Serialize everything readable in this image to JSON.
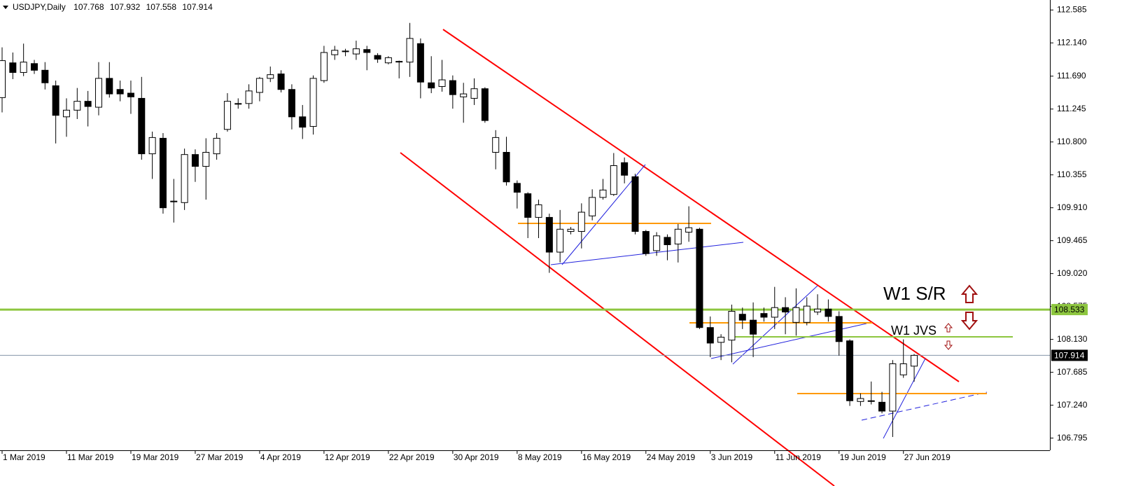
{
  "chart_data": {
    "type": "candlestick",
    "title": "USDJPY,Daily",
    "categories": [
      "1 Mar 2019",
      null,
      null,
      null,
      null,
      null,
      "11 Mar 2019",
      null,
      null,
      null,
      null,
      null,
      "19 Mar 2019",
      null,
      null,
      null,
      null,
      null,
      "27 Mar 2019",
      null,
      null,
      null,
      null,
      null,
      "4 Apr 2019",
      null,
      null,
      null,
      null,
      null,
      "12 Apr 2019",
      null,
      null,
      null,
      null,
      null,
      "22 Apr 2019",
      null,
      null,
      null,
      null,
      null,
      "30 Apr 2019",
      null,
      null,
      null,
      null,
      null,
      "8 May 2019",
      null,
      null,
      null,
      null,
      null,
      "16 May 2019",
      null,
      null,
      null,
      null,
      null,
      "24 May 2019",
      null,
      null,
      null,
      null,
      null,
      "3 Jun 2019",
      null,
      null,
      null,
      null,
      null,
      "11 Jun 2019",
      null,
      null,
      null,
      null,
      null,
      "19 Jun 2019",
      null,
      null,
      null,
      null,
      null,
      "27 Jun 2019",
      null
    ],
    "open": [
      111.4,
      111.87,
      111.74,
      111.86,
      111.77,
      111.56,
      111.14,
      111.23,
      111.35,
      111.27,
      111.66,
      111.51,
      111.46,
      111.39,
      110.64,
      110.85,
      109.99,
      109.98,
      110.63,
      110.47,
      110.64,
      110.97,
      111.32,
      111.32,
      111.47,
      111.66,
      111.72,
      111.51,
      111.14,
      111.01,
      111.63,
      111.98,
      112.03,
      111.99,
      112.05,
      111.97,
      111.87,
      111.89,
      111.88,
      112.13,
      111.6,
      111.55,
      111.63,
      111.41,
      111.39,
      111.52,
      110.66,
      110.66,
      110.24,
      110.1,
      109.78,
      109.78,
      109.31,
      109.59,
      109.59,
      109.8,
      110.05,
      110.09,
      110.52,
      110.33,
      109.59,
      109.33,
      109.51,
      109.42,
      109.58,
      109.62,
      108.29,
      108.09,
      108.12,
      108.47,
      108.39,
      108.48,
      108.43,
      108.56,
      108.36,
      108.36,
      108.5,
      108.54,
      108.44,
      108.11,
      107.29,
      107.3,
      107.28,
      107.16,
      107.65,
      107.768
    ],
    "high": [
      112.08,
      112.01,
      112.13,
      111.91,
      111.88,
      111.63,
      111.39,
      111.53,
      111.49,
      111.88,
      111.88,
      111.63,
      111.63,
      111.68,
      110.94,
      110.92,
      110.3,
      110.71,
      110.7,
      110.85,
      110.92,
      111.46,
      111.39,
      111.58,
      111.68,
      111.82,
      111.77,
      111.58,
      111.3,
      111.7,
      112.1,
      112.1,
      112.06,
      112.17,
      112.1,
      112.0,
      111.96,
      111.9,
      112.41,
      112.2,
      111.96,
      111.91,
      111.7,
      111.6,
      111.66,
      111.54,
      110.96,
      110.87,
      110.28,
      110.12,
      110.02,
      109.83,
      109.88,
      109.65,
      109.97,
      110.16,
      110.3,
      110.65,
      110.59,
      110.37,
      109.61,
      109.58,
      109.55,
      109.69,
      109.93,
      109.64,
      108.44,
      108.2,
      108.6,
      108.56,
      108.63,
      108.56,
      108.84,
      108.7,
      108.82,
      108.7,
      108.74,
      108.67,
      108.51,
      108.13,
      107.4,
      107.56,
      107.42,
      107.85,
      108.13,
      107.932
    ],
    "low": [
      111.2,
      111.65,
      111.69,
      111.72,
      111.51,
      110.78,
      110.87,
      111.11,
      111.01,
      111.16,
      111.4,
      111.35,
      111.18,
      110.56,
      110.3,
      109.83,
      109.71,
      109.88,
      110.26,
      110.02,
      110.56,
      110.94,
      111.25,
      111.25,
      111.35,
      111.61,
      111.47,
      110.97,
      110.84,
      110.9,
      111.6,
      111.91,
      111.96,
      111.91,
      111.77,
      111.87,
      111.85,
      111.66,
      111.68,
      111.39,
      111.46,
      111.48,
      111.25,
      111.06,
      111.3,
      111.06,
      110.43,
      110.21,
      109.9,
      109.5,
      109.5,
      109.03,
      109.17,
      109.55,
      109.36,
      109.74,
      110.02,
      110.07,
      110.24,
      109.55,
      109.26,
      109.26,
      109.2,
      109.17,
      109.45,
      108.27,
      107.89,
      107.85,
      107.82,
      108.27,
      107.89,
      108.37,
      108.27,
      108.2,
      108.18,
      108.32,
      108.46,
      108.37,
      107.91,
      107.23,
      107.23,
      107.25,
      107.13,
      106.81,
      107.61,
      107.558
    ],
    "close": [
      111.9,
      111.74,
      111.88,
      111.77,
      111.6,
      111.16,
      111.23,
      111.35,
      111.28,
      111.66,
      111.45,
      111.45,
      111.41,
      110.64,
      110.86,
      109.91,
      110.0,
      110.63,
      110.47,
      110.66,
      110.85,
      111.35,
      111.32,
      111.49,
      111.66,
      111.71,
      111.51,
      111.14,
      111.0,
      111.66,
      112.01,
      112.04,
      112.03,
      112.06,
      112.01,
      111.92,
      111.94,
      111.89,
      112.2,
      111.61,
      111.53,
      111.64,
      111.44,
      111.45,
      111.52,
      111.09,
      110.86,
      110.26,
      110.12,
      109.78,
      109.95,
      109.31,
      109.62,
      109.62,
      109.85,
      110.05,
      110.15,
      110.48,
      110.35,
      109.59,
      109.29,
      109.53,
      109.41,
      109.62,
      109.64,
      108.29,
      108.08,
      108.16,
      108.51,
      108.39,
      108.2,
      108.43,
      108.56,
      108.5,
      108.56,
      108.58,
      108.54,
      108.44,
      108.1,
      107.3,
      107.33,
      107.3,
      107.16,
      107.8,
      107.8,
      107.914
    ],
    "ylim": [
      106.63,
      112.72
    ],
    "yticks": [
      112.585,
      {
        "value": 112.14,
        "label": "112.140"
      },
      {
        "value": 111.69,
        "label": "111.690"
      },
      111.245,
      {
        "value": 110.8,
        "label": "110.800"
      },
      110.355,
      {
        "value": 109.91,
        "label": "109.910"
      },
      109.465,
      {
        "value": 109.02,
        "label": "109.020"
      },
      108.575,
      {
        "value": 108.13,
        "label": "108.130"
      },
      107.685,
      {
        "value": 107.24,
        "label": "107.240"
      },
      106.795
    ],
    "level": 108.533,
    "level_color": "#8dc63f",
    "price_line_color": "#8595a8",
    "annotations": [
      "W1 S/R",
      "W1 JVS"
    ]
  }
}
